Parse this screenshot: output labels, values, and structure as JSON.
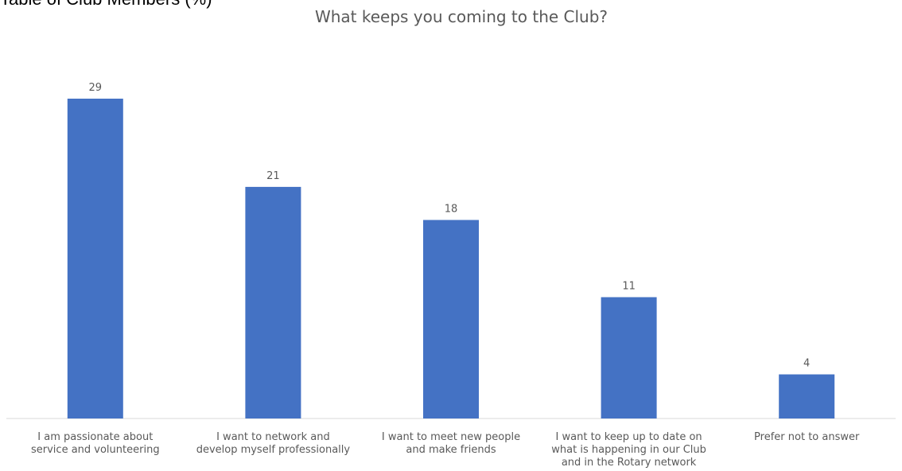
{
  "header": {
    "cutoff_text": "Table of Club Members (%)"
  },
  "chart_data": {
    "type": "bar",
    "title": "What keeps you coming to the Club?",
    "categories": [
      [
        "I am passionate about",
        "service and volunteering"
      ],
      [
        "I want to network and",
        "develop myself professionally"
      ],
      [
        "I want to meet new people",
        "and make friends"
      ],
      [
        "I want to keep up to date on",
        "what is happening in our Club",
        "and in the Rotary network"
      ],
      [
        "Prefer not to answer"
      ]
    ],
    "values": [
      29,
      21,
      18,
      11,
      4
    ],
    "ylim": [
      0,
      29
    ],
    "grid": false,
    "legend": "none",
    "colors": {
      "bar": "#4472C4",
      "text": "#595959",
      "axis": "#D9D9D9"
    }
  }
}
